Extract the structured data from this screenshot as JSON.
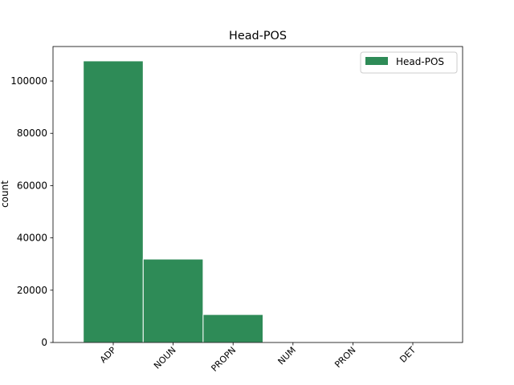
{
  "chart_data": {
    "type": "bar",
    "title": "Head-POS",
    "ylabel": "count",
    "categories": [
      "ADP",
      "NOUN",
      "PROPN",
      "NUM",
      "PRON",
      "DET"
    ],
    "series": [
      {
        "name": "Head-POS",
        "color": "#2e8b57",
        "values": [
          107700,
          31900,
          10700,
          100,
          50,
          20
        ]
      }
    ],
    "ylim": [
      0,
      113200
    ],
    "yticks": [
      0,
      20000,
      40000,
      60000,
      80000,
      100000
    ],
    "legend": "upper right",
    "grid": false
  }
}
